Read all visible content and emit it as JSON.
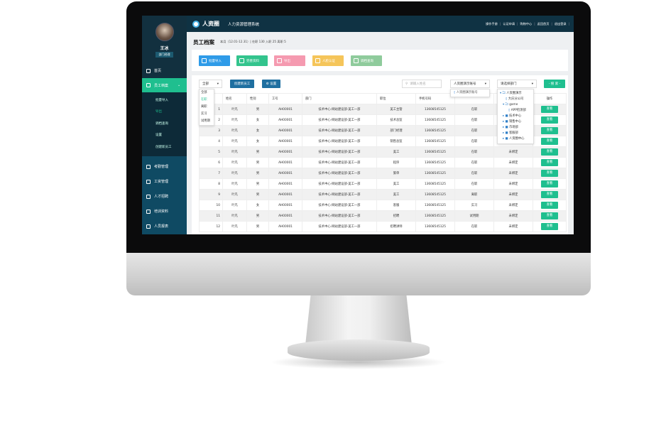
{
  "app": {
    "brand": "人资圈",
    "system_name": "人力资源管理系统"
  },
  "header": {
    "links": [
      "操作手册",
      "认证申请",
      "购物中心",
      "返回首页",
      "退出登录"
    ]
  },
  "user": {
    "name": "王冰",
    "role": "部门经理"
  },
  "sidebar": {
    "home": "首页",
    "active": "员工档案",
    "submenu": [
      "批量导入",
      "导出",
      "调档查询",
      "设置",
      "创建新员工"
    ],
    "submenu_selected": "导出",
    "items": [
      "考勤管理",
      "工资管理",
      "人才招聘",
      "培训资料",
      "人员报表"
    ]
  },
  "page": {
    "title": "员工档案",
    "summary": "本月（12.01-12.31）| 在职 130  入职 25  离职 5"
  },
  "actions": [
    {
      "label": "批量导入",
      "color": "#2f9be8"
    },
    {
      "label": "完善资料",
      "color": "#33c48d"
    },
    {
      "label": "导出",
      "color": "#f59ab0"
    },
    {
      "label": "人脸认证",
      "color": "#f5c55a"
    },
    {
      "label": "调档查询",
      "color": "#8fcb9c"
    }
  ],
  "toolbar": {
    "status_select": "全部",
    "create_label": "创建新员工",
    "settings_label": "设置",
    "search_placeholder": "请输入姓名",
    "account_select": "人资圈演示账号",
    "dept_select": "请选择部门",
    "search_label": "- 搜 索 -"
  },
  "status_options": [
    "全部",
    "在职",
    "离职",
    "实习",
    "试用期"
  ],
  "status_selected": "在职",
  "account_options": [
    "人资圈演示账号"
  ],
  "dept_tree": [
    "人资圈演示",
    "大庆分公司",
    "game",
    "APP检测部",
    "技术中心",
    "销售中心",
    "市场部",
    "客服部",
    "人资圈中心"
  ],
  "table": {
    "headers": [
      "",
      "姓名",
      "性别",
      "工号",
      "部门",
      "职位",
      "手机号码",
      "",
      "",
      "操作"
    ],
    "rows": [
      [
        "1",
        "叶凡",
        "男",
        "AH00001",
        "技术中心-网站建设部-美工一部",
        "美工主管",
        "13608545125",
        "在职",
        "",
        "查看"
      ],
      [
        "2",
        "叶凡",
        "女",
        "AH00001",
        "技术中心-网站建设部-美工一部",
        "技术总监",
        "13608545125",
        "在职",
        "",
        "查看"
      ],
      [
        "3",
        "叶凡",
        "女",
        "AH00001",
        "技术中心-网站建设部-美工一部",
        "部门经理",
        "13608545125",
        "在职",
        "",
        "查看"
      ],
      [
        "4",
        "叶凡",
        "女",
        "AH00001",
        "技术中心-网站建设部-美工一部",
        "销售总监",
        "13608545125",
        "在职",
        "",
        "查看"
      ],
      [
        "5",
        "叶凡",
        "男",
        "AH00001",
        "技术中心-网站建设部-美工一部",
        "美工",
        "13608545125",
        "在职",
        "未绑定",
        "查看"
      ],
      [
        "6",
        "叶凡",
        "男",
        "AH00001",
        "技术中心-网站建设部-美工一部",
        "程序",
        "13608545125",
        "在职",
        "未绑定",
        "查看"
      ],
      [
        "7",
        "叶凡",
        "男",
        "AH00001",
        "技术中心-网站建设部-美工一部",
        "策单",
        "13608545125",
        "在职",
        "未绑定",
        "查看"
      ],
      [
        "8",
        "叶凡",
        "男",
        "AH00001",
        "技术中心-网站建设部-美工一部",
        "美工",
        "13608545125",
        "在职",
        "未绑定",
        "查看"
      ],
      [
        "9",
        "叶凡",
        "男",
        "AH00001",
        "技术中心-网站建设部-美工一部",
        "美工",
        "13608545125",
        "离职",
        "未绑定",
        "查看"
      ],
      [
        "10",
        "叶凡",
        "女",
        "AH00001",
        "技术中心-网站建设部-美工一部",
        "客服",
        "13608545125",
        "实习",
        "未绑定",
        "查看"
      ],
      [
        "11",
        "叶凡",
        "男",
        "AH00001",
        "技术中心-网站建设部-美工一部",
        "招聘",
        "13608545125",
        "试用期",
        "未绑定",
        "查看"
      ],
      [
        "12",
        "叶凡",
        "男",
        "AH00001",
        "技术中心-网站建设部-美工一部",
        "招聘讲师",
        "13608545125",
        "在职",
        "未绑定",
        "查看"
      ]
    ]
  }
}
